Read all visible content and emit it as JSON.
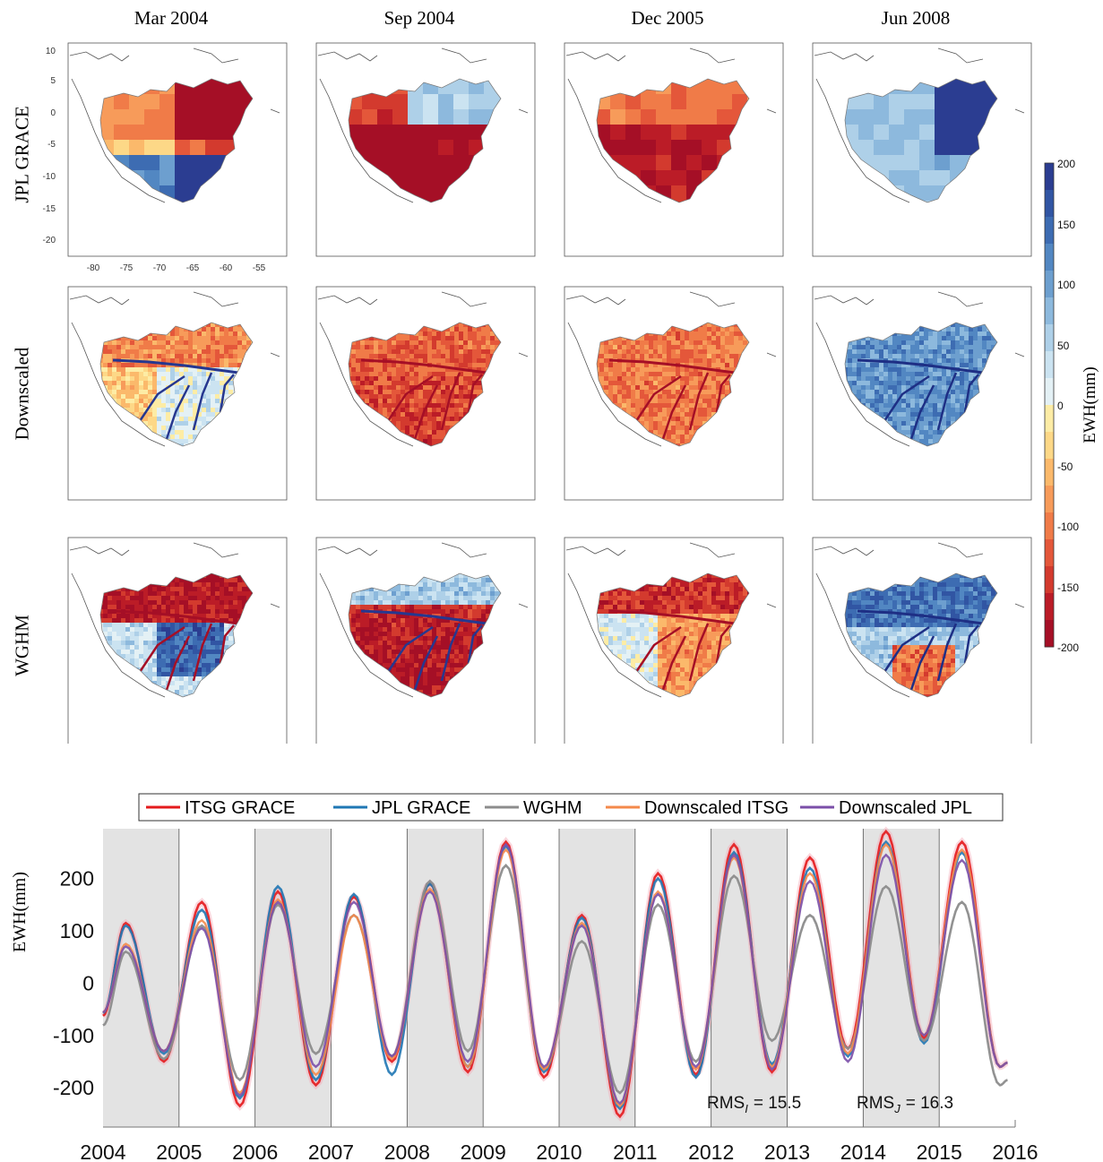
{
  "maps": {
    "columns": [
      "Mar 2004",
      "Sep 2004",
      "Dec 2005",
      "Jun 2008"
    ],
    "rows": [
      "JPL GRACE",
      "Downscaled",
      "WGHM"
    ],
    "lat_ticks": [
      "10",
      "5",
      "0",
      "-5",
      "-10",
      "-15",
      "-20"
    ],
    "lon_ticks": [
      "-80",
      "-75",
      "-70",
      "-65",
      "-60",
      "-55"
    ],
    "colorbar": {
      "label": "EWH(mm)",
      "ticks": [
        "200",
        "150",
        "100",
        "50",
        "0",
        "-50",
        "-100",
        "-150",
        "-200"
      ],
      "range": [
        -200,
        200
      ],
      "colors_top_to_bottom": [
        "#2b3d91",
        "#3155a3",
        "#3d6cb2",
        "#5287c2",
        "#6d9fcf",
        "#8db9dd",
        "#aed0e8",
        "#cbe3f1",
        "#e4f1f5",
        "#fdeca5",
        "#fdd887",
        "#fbb96b",
        "#f79b5a",
        "#f07b48",
        "#e4573a",
        "#d33a2e",
        "#bb1c27",
        "#a50f26"
      ]
    }
  },
  "timeseries": {
    "ylabel": "EWH(mm)",
    "rms_labels": [
      {
        "base": "RMS",
        "sub": "I",
        "value": "= 15.5"
      },
      {
        "base": "RMS",
        "sub": "J",
        "value": "= 16.3"
      }
    ],
    "legend": [
      "ITSG GRACE",
      "JPL GRACE",
      "WGHM",
      "Downscaled ITSG",
      "Downscaled JPL"
    ]
  },
  "chart_data": {
    "type": "line",
    "xlabel": "",
    "ylabel": "EWH(mm)",
    "xlim": [
      2004,
      2016
    ],
    "ylim": [
      -275,
      295
    ],
    "x_ticks": [
      2004,
      2005,
      2006,
      2007,
      2008,
      2009,
      2010,
      2011,
      2012,
      2013,
      2014,
      2015,
      2016
    ],
    "y_ticks": [
      -200,
      -100,
      0,
      100,
      200
    ],
    "shaded_years": [
      [
        2004,
        2005
      ],
      [
        2006,
        2007
      ],
      [
        2008,
        2009
      ],
      [
        2010,
        2011
      ],
      [
        2012,
        2013
      ],
      [
        2014,
        2015
      ]
    ],
    "legend_position": "top",
    "series": [
      {
        "name": "ITSG GRACE",
        "color": "#e41a1c",
        "peaks": [
          115,
          155,
          175,
          165,
          190,
          270,
          130,
          210,
          265,
          240,
          290,
          270
        ],
        "troughs": [
          -150,
          -235,
          -195,
          -150,
          -170,
          -180,
          -255,
          -175,
          -170,
          -125,
          -105,
          -160
        ]
      },
      {
        "name": "JPL GRACE",
        "color": "#1f77b4",
        "peaks": [
          110,
          140,
          185,
          170,
          190,
          262,
          125,
          200,
          250,
          220,
          270,
          250
        ],
        "troughs": [
          -135,
          -220,
          -185,
          -175,
          -160,
          -170,
          -240,
          -180,
          -155,
          -140,
          -115,
          -160
        ]
      },
      {
        "name": "WGHM",
        "color": "#8c8c8c",
        "peaks": [
          60,
          110,
          150,
          130,
          195,
          225,
          80,
          150,
          205,
          130,
          185,
          155
        ],
        "troughs": [
          -145,
          -185,
          -135,
          -140,
          -130,
          -165,
          -210,
          -150,
          -110,
          -125,
          -110,
          -195
        ]
      },
      {
        "name": "Downscaled ITSG",
        "color": "#f4894b",
        "peaks": [
          75,
          120,
          160,
          130,
          180,
          255,
          115,
          175,
          240,
          210,
          265,
          255
        ],
        "troughs": [
          -130,
          -210,
          -175,
          -145,
          -160,
          -165,
          -235,
          -165,
          -160,
          -135,
          -100,
          -160
        ]
      },
      {
        "name": "Downscaled JPL",
        "color": "#7b4fa8",
        "peaks": [
          70,
          105,
          155,
          155,
          175,
          265,
          110,
          170,
          245,
          195,
          245,
          235
        ],
        "troughs": [
          -130,
          -215,
          -160,
          -140,
          -150,
          -160,
          -230,
          -160,
          -165,
          -150,
          -100,
          -160
        ]
      }
    ]
  }
}
